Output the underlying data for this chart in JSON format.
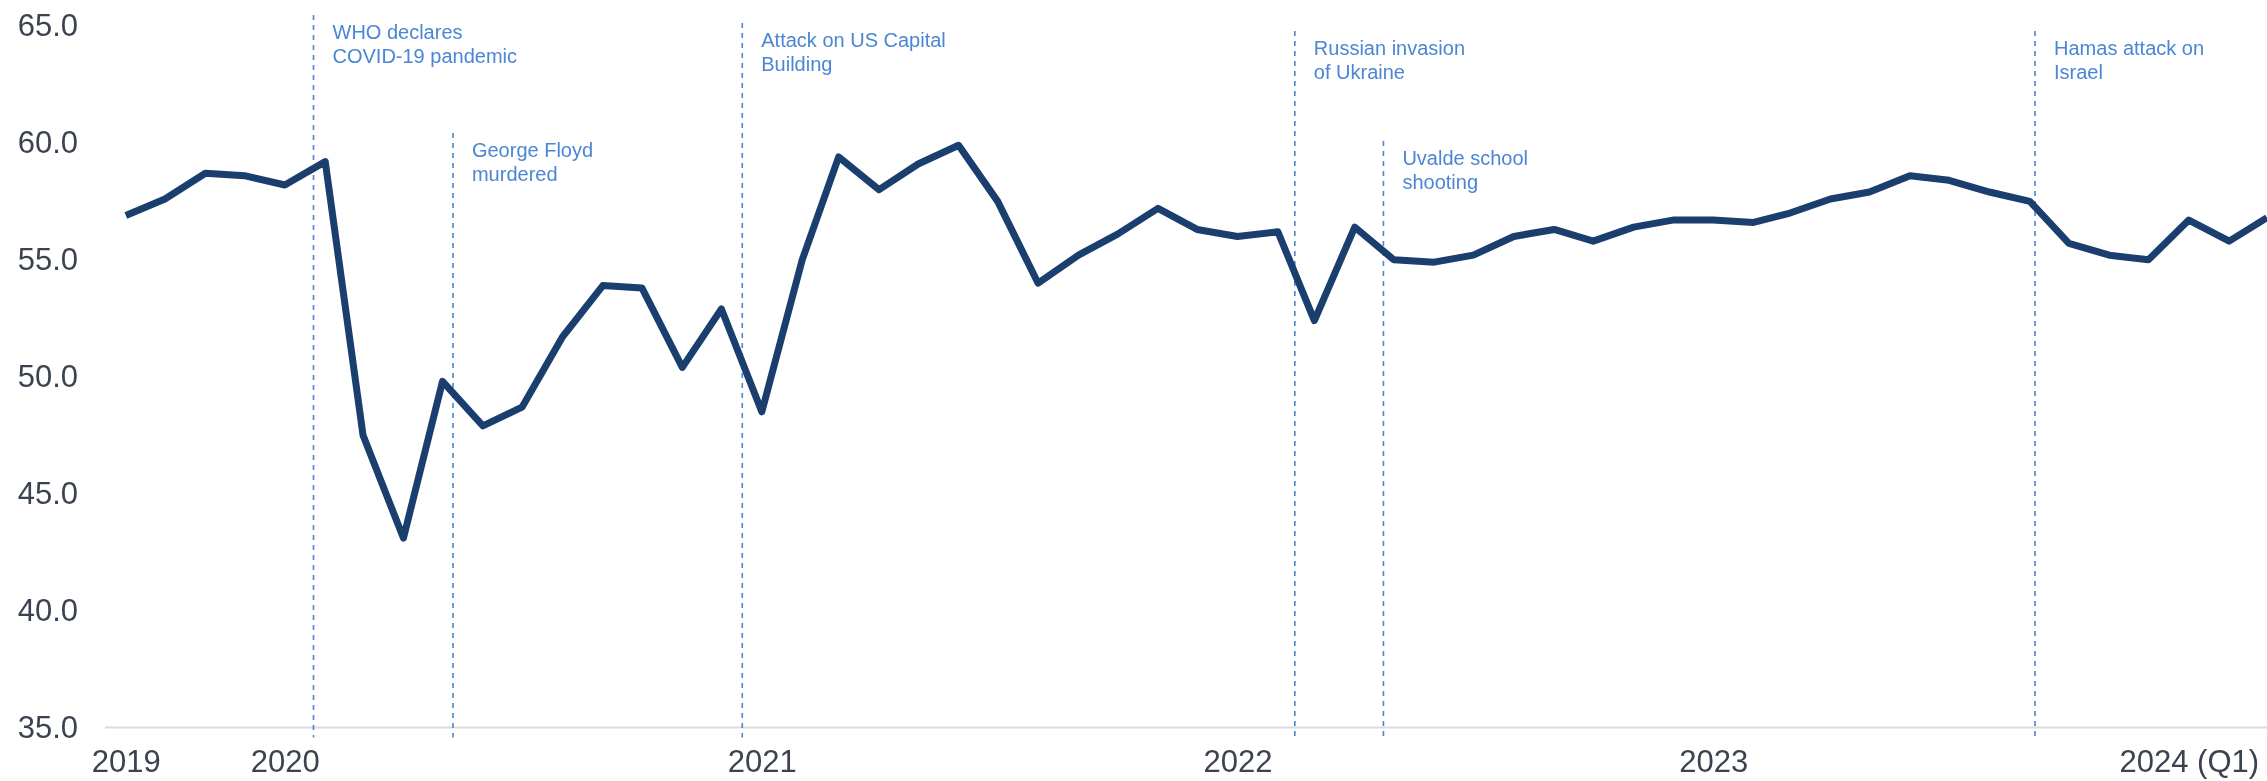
{
  "chart_data": {
    "type": "line",
    "x": [
      "2019-09",
      "2019-10",
      "2019-11",
      "2019-12",
      "2020-01",
      "2020-02",
      "2020-03",
      "2020-04",
      "2020-05",
      "2020-06",
      "2020-07",
      "2020-08",
      "2020-09",
      "2020-10",
      "2020-11",
      "2020-12",
      "2021-01",
      "2021-02",
      "2021-03",
      "2021-04",
      "2021-05",
      "2021-06",
      "2021-07",
      "2021-08",
      "2021-09",
      "2021-10",
      "2021-11",
      "2021-12",
      "2022-01",
      "2022-02",
      "2022-03",
      "2022-04",
      "2022-05",
      "2022-06",
      "2022-07",
      "2022-08",
      "2022-09",
      "2022-10",
      "2022-11",
      "2022-12",
      "2023-01",
      "2023-02",
      "2023-03",
      "2023-04",
      "2023-05",
      "2023-06",
      "2023-07",
      "2023-08",
      "2023-09",
      "2023-10",
      "2023-11",
      "2023-12",
      "2024-01",
      "2024-02",
      "2024-03"
    ],
    "series": [
      {
        "color": "#1a3e6e",
        "values": [
          56.9,
          57.6,
          58.7,
          58.6,
          58.2,
          59.2,
          47.5,
          43.1,
          49.8,
          47.9,
          48.7,
          51.7,
          53.9,
          53.8,
          50.4,
          52.9,
          48.5,
          55.0,
          59.4,
          58.0,
          59.1,
          59.9,
          57.5,
          54.0,
          55.2,
          56.1,
          57.2,
          56.3,
          56.0,
          56.2,
          52.4,
          56.4,
          55.0,
          54.9,
          55.2,
          56.0,
          56.3,
          55.8,
          56.4,
          56.7,
          56.7,
          56.6,
          57.0,
          57.6,
          57.9,
          58.6,
          58.4,
          57.9,
          57.5,
          55.7,
          55.2,
          55.0,
          56.7,
          55.8,
          56.8
        ]
      }
    ],
    "xlim": [
      "2019-08-16",
      "2024-03"
    ],
    "xticks": [
      {
        "value": "2019-09",
        "label": "2019"
      },
      {
        "value": "2020-01",
        "label": "2020"
      },
      {
        "value": "2021-01",
        "label": "2021"
      },
      {
        "value": "2022-01",
        "label": "2022"
      },
      {
        "value": "2023-01",
        "label": "2023"
      },
      {
        "value": "2024-01",
        "label": "2024 (Q1)"
      }
    ],
    "ylim": [
      35,
      65
    ],
    "yticks": [
      {
        "value": 35,
        "label": "35.0"
      },
      {
        "value": 40,
        "label": "40.0"
      },
      {
        "value": 45,
        "label": "45.0"
      },
      {
        "value": 50,
        "label": "50.0"
      },
      {
        "value": 55,
        "label": "55.0"
      },
      {
        "value": 60,
        "label": "60.0"
      },
      {
        "value": 65,
        "label": "65.0"
      }
    ],
    "ref_lines": [
      {
        "axis": "x",
        "value": "2020-01-23",
        "label": "WHO declares\nCOVID-19 pandemic",
        "color": "#4a86d4",
        "line_style": "dashed"
      },
      {
        "axis": "x",
        "value": "2020-05-09",
        "label": "George Floyd\nmurdered",
        "color": "#4a86d4",
        "line_style": "dashed"
      },
      {
        "axis": "x",
        "value": "2020-12-17",
        "label": "Attack on US Capital\nBuilding",
        "color": "#4a86d4",
        "line_style": "dashed"
      },
      {
        "axis": "x",
        "value": "2022-02-14",
        "label": "Russian invasion\nof Ukraine",
        "color": "#4a86d4",
        "line_style": "dashed"
      },
      {
        "axis": "x",
        "value": "2022-04-23",
        "label": "Uvalde school\nshooting",
        "color": "#4a86d4",
        "line_style": "dashed"
      },
      {
        "axis": "x",
        "value": "2023-09-05",
        "label": "Hamas attack on\nIsrael",
        "color": "#4a86d4",
        "line_style": "dashed"
      }
    ],
    "grid": false,
    "marker": "none",
    "line_style": "solid"
  }
}
